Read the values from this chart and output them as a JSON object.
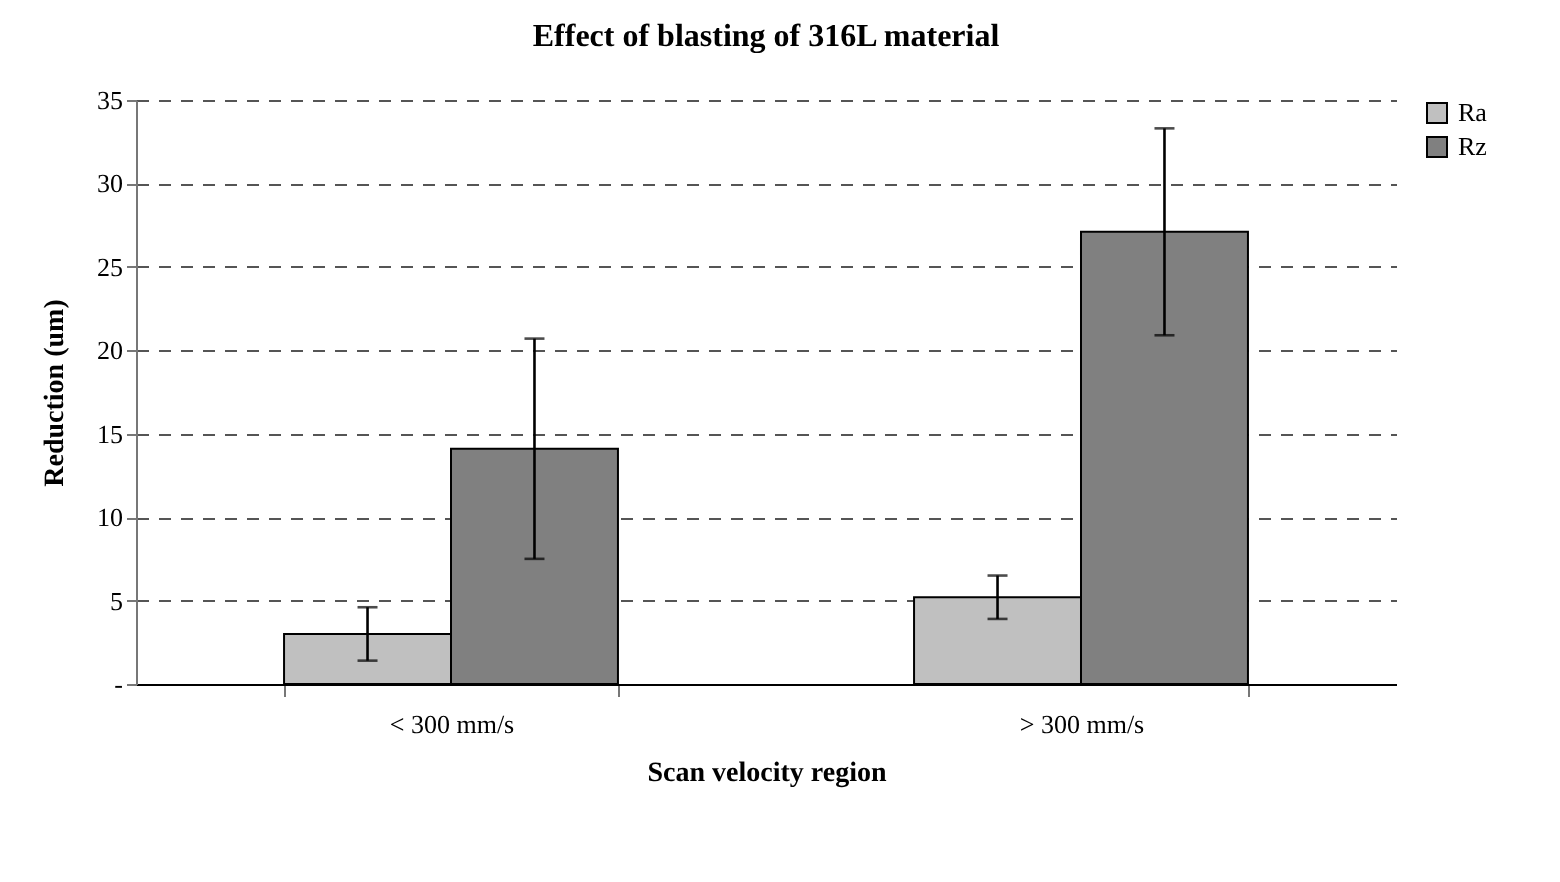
{
  "chart_data": {
    "type": "bar",
    "title": "Effect of blasting of 316L material",
    "xlabel": "Scan velocity region",
    "ylabel": "Reduction (um)",
    "categories": [
      "< 300 mm/s",
      "> 300 mm/s"
    ],
    "series": [
      {
        "name": "Ra",
        "color": "#c0c0c0",
        "values": [
          3.0,
          5.2
        ],
        "errors": [
          1.6,
          1.3
        ]
      },
      {
        "name": "Rz",
        "color": "#808080",
        "values": [
          14.1,
          27.1
        ],
        "errors": [
          6.6,
          6.2
        ]
      }
    ],
    "ylim": [
      0,
      35
    ],
    "yticks": [
      {
        "value": 0,
        "label": "-"
      },
      5,
      10,
      15,
      20,
      25,
      30,
      35
    ],
    "grid": "y",
    "legend": "right"
  }
}
